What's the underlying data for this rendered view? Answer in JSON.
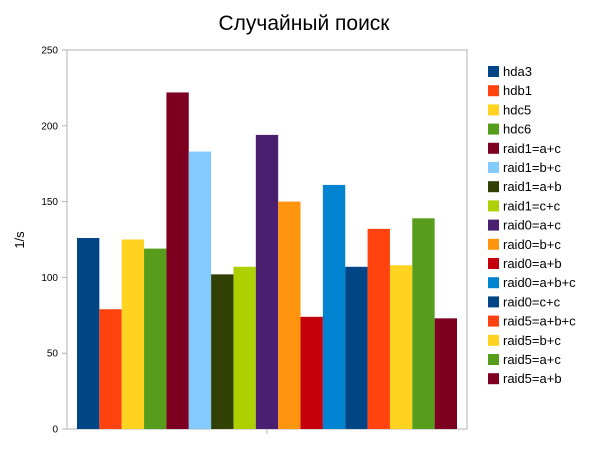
{
  "chart_data": {
    "type": "bar",
    "title": "Случайный поиск",
    "ylabel": "1/s",
    "xlabel": "",
    "ylim": [
      0,
      250
    ],
    "yticks": [
      0,
      50,
      100,
      150,
      200,
      250
    ],
    "grid": false,
    "legend_position": "right",
    "series": [
      {
        "name": "hda3",
        "value": 126,
        "color": "#004586"
      },
      {
        "name": "hdb1",
        "value": 79,
        "color": "#ff420e"
      },
      {
        "name": "hdc5",
        "value": 125,
        "color": "#ffd320"
      },
      {
        "name": "hdc6",
        "value": 119,
        "color": "#579d1c"
      },
      {
        "name": "raid1=a+c",
        "value": 222,
        "color": "#7e0021"
      },
      {
        "name": "raid1=b+c",
        "value": 183,
        "color": "#83caff"
      },
      {
        "name": "raid1=a+b",
        "value": 102,
        "color": "#314004"
      },
      {
        "name": "raid1=c+c",
        "value": 107,
        "color": "#aecf00"
      },
      {
        "name": "raid0=a+c",
        "value": 194,
        "color": "#4b1f6f"
      },
      {
        "name": "raid0=b+c",
        "value": 150,
        "color": "#ff950e"
      },
      {
        "name": "raid0=a+b",
        "value": 74,
        "color": "#c5000b"
      },
      {
        "name": "raid0=a+b+c",
        "value": 161,
        "color": "#0084d1"
      },
      {
        "name": "raid0=c+c",
        "value": 107,
        "color": "#004586"
      },
      {
        "name": "raid5=a+b+c",
        "value": 132,
        "color": "#ff420e"
      },
      {
        "name": "raid5=b+c",
        "value": 108,
        "color": "#ffd320"
      },
      {
        "name": "raid5=a+c",
        "value": 139,
        "color": "#579d1c"
      },
      {
        "name": "raid5=a+b",
        "value": 73,
        "color": "#7e0021"
      }
    ]
  }
}
